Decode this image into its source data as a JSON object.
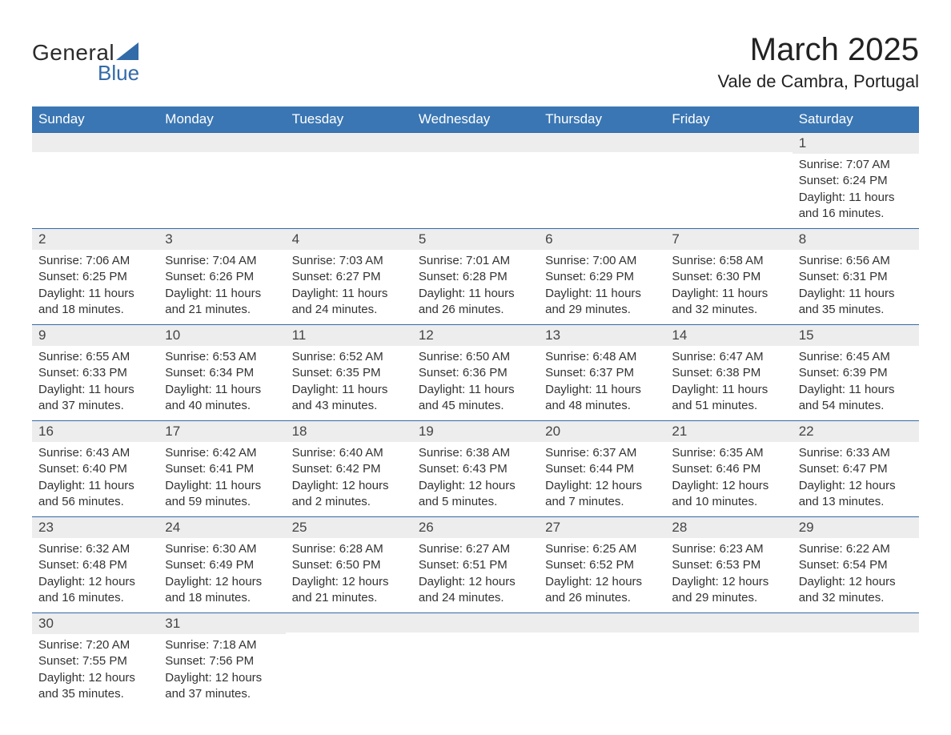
{
  "logo": {
    "line1": "General",
    "line2": "Blue",
    "triangle_color": "#336aa8"
  },
  "title": "March 2025",
  "location": "Vale de Cambra, Portugal",
  "colors": {
    "header_bg": "#3a76b3",
    "header_text": "#ffffff",
    "row_stripe": "#ededed",
    "rule": "#336aa8",
    "text": "#333333",
    "background": "#ffffff"
  },
  "typography": {
    "title_fontsize": 40,
    "location_fontsize": 22,
    "weekday_fontsize": 17,
    "daynum_fontsize": 17,
    "body_fontsize": 15
  },
  "weekdays": [
    "Sunday",
    "Monday",
    "Tuesday",
    "Wednesday",
    "Thursday",
    "Friday",
    "Saturday"
  ],
  "labels": {
    "sunrise": "Sunrise:",
    "sunset": "Sunset:",
    "daylight": "Daylight:"
  },
  "weeks": [
    [
      {
        "blank": true
      },
      {
        "blank": true
      },
      {
        "blank": true
      },
      {
        "blank": true
      },
      {
        "blank": true
      },
      {
        "blank": true
      },
      {
        "day": "1",
        "sunrise": "7:07 AM",
        "sunset": "6:24 PM",
        "daylight": "11 hours and 16 minutes."
      }
    ],
    [
      {
        "day": "2",
        "sunrise": "7:06 AM",
        "sunset": "6:25 PM",
        "daylight": "11 hours and 18 minutes."
      },
      {
        "day": "3",
        "sunrise": "7:04 AM",
        "sunset": "6:26 PM",
        "daylight": "11 hours and 21 minutes."
      },
      {
        "day": "4",
        "sunrise": "7:03 AM",
        "sunset": "6:27 PM",
        "daylight": "11 hours and 24 minutes."
      },
      {
        "day": "5",
        "sunrise": "7:01 AM",
        "sunset": "6:28 PM",
        "daylight": "11 hours and 26 minutes."
      },
      {
        "day": "6",
        "sunrise": "7:00 AM",
        "sunset": "6:29 PM",
        "daylight": "11 hours and 29 minutes."
      },
      {
        "day": "7",
        "sunrise": "6:58 AM",
        "sunset": "6:30 PM",
        "daylight": "11 hours and 32 minutes."
      },
      {
        "day": "8",
        "sunrise": "6:56 AM",
        "sunset": "6:31 PM",
        "daylight": "11 hours and 35 minutes."
      }
    ],
    [
      {
        "day": "9",
        "sunrise": "6:55 AM",
        "sunset": "6:33 PM",
        "daylight": "11 hours and 37 minutes."
      },
      {
        "day": "10",
        "sunrise": "6:53 AM",
        "sunset": "6:34 PM",
        "daylight": "11 hours and 40 minutes."
      },
      {
        "day": "11",
        "sunrise": "6:52 AM",
        "sunset": "6:35 PM",
        "daylight": "11 hours and 43 minutes."
      },
      {
        "day": "12",
        "sunrise": "6:50 AM",
        "sunset": "6:36 PM",
        "daylight": "11 hours and 45 minutes."
      },
      {
        "day": "13",
        "sunrise": "6:48 AM",
        "sunset": "6:37 PM",
        "daylight": "11 hours and 48 minutes."
      },
      {
        "day": "14",
        "sunrise": "6:47 AM",
        "sunset": "6:38 PM",
        "daylight": "11 hours and 51 minutes."
      },
      {
        "day": "15",
        "sunrise": "6:45 AM",
        "sunset": "6:39 PM",
        "daylight": "11 hours and 54 minutes."
      }
    ],
    [
      {
        "day": "16",
        "sunrise": "6:43 AM",
        "sunset": "6:40 PM",
        "daylight": "11 hours and 56 minutes."
      },
      {
        "day": "17",
        "sunrise": "6:42 AM",
        "sunset": "6:41 PM",
        "daylight": "11 hours and 59 minutes."
      },
      {
        "day": "18",
        "sunrise": "6:40 AM",
        "sunset": "6:42 PM",
        "daylight": "12 hours and 2 minutes."
      },
      {
        "day": "19",
        "sunrise": "6:38 AM",
        "sunset": "6:43 PM",
        "daylight": "12 hours and 5 minutes."
      },
      {
        "day": "20",
        "sunrise": "6:37 AM",
        "sunset": "6:44 PM",
        "daylight": "12 hours and 7 minutes."
      },
      {
        "day": "21",
        "sunrise": "6:35 AM",
        "sunset": "6:46 PM",
        "daylight": "12 hours and 10 minutes."
      },
      {
        "day": "22",
        "sunrise": "6:33 AM",
        "sunset": "6:47 PM",
        "daylight": "12 hours and 13 minutes."
      }
    ],
    [
      {
        "day": "23",
        "sunrise": "6:32 AM",
        "sunset": "6:48 PM",
        "daylight": "12 hours and 16 minutes."
      },
      {
        "day": "24",
        "sunrise": "6:30 AM",
        "sunset": "6:49 PM",
        "daylight": "12 hours and 18 minutes."
      },
      {
        "day": "25",
        "sunrise": "6:28 AM",
        "sunset": "6:50 PM",
        "daylight": "12 hours and 21 minutes."
      },
      {
        "day": "26",
        "sunrise": "6:27 AM",
        "sunset": "6:51 PM",
        "daylight": "12 hours and 24 minutes."
      },
      {
        "day": "27",
        "sunrise": "6:25 AM",
        "sunset": "6:52 PM",
        "daylight": "12 hours and 26 minutes."
      },
      {
        "day": "28",
        "sunrise": "6:23 AM",
        "sunset": "6:53 PM",
        "daylight": "12 hours and 29 minutes."
      },
      {
        "day": "29",
        "sunrise": "6:22 AM",
        "sunset": "6:54 PM",
        "daylight": "12 hours and 32 minutes."
      }
    ],
    [
      {
        "day": "30",
        "sunrise": "7:20 AM",
        "sunset": "7:55 PM",
        "daylight": "12 hours and 35 minutes."
      },
      {
        "day": "31",
        "sunrise": "7:18 AM",
        "sunset": "7:56 PM",
        "daylight": "12 hours and 37 minutes."
      },
      {
        "blank": true
      },
      {
        "blank": true
      },
      {
        "blank": true
      },
      {
        "blank": true
      },
      {
        "blank": true
      }
    ]
  ]
}
